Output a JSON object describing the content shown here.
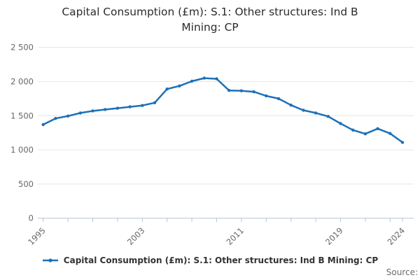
{
  "header": {
    "title": "Capital Consumption (£m): S.1: Other structures: Ind B Mining: CP"
  },
  "legend": {
    "label": "Capital Consumption (£m): S.1: Other structures: Ind B Mining: CP"
  },
  "footer": {
    "source_label": "Source:"
  },
  "colors": {
    "line": "#1d70b8",
    "marker": "#1d70b8",
    "grid": "#e6e6e6",
    "axis": "#b6c4d4",
    "tick_text": "#666666",
    "title_text": "#2b2b2b",
    "legend_text": "#333333",
    "source_text": "#6b6b6b"
  },
  "chart_data": {
    "type": "line",
    "title": "Capital Consumption (£m): S.1: Other structures: Ind B Mining: CP",
    "series_name": "Capital Consumption (£m): S.1: Other structures: Ind B Mining: CP",
    "x": [
      1995,
      1996,
      1997,
      1998,
      1999,
      2000,
      2001,
      2002,
      2003,
      2004,
      2005,
      2006,
      2007,
      2008,
      2009,
      2010,
      2011,
      2012,
      2013,
      2014,
      2015,
      2016,
      2017,
      2018,
      2019,
      2020,
      2021,
      2022,
      2023,
      2024
    ],
    "values": [
      1370,
      1460,
      1495,
      1540,
      1570,
      1590,
      1610,
      1630,
      1650,
      1690,
      1890,
      1935,
      2005,
      2050,
      2040,
      1870,
      1865,
      1850,
      1790,
      1750,
      1655,
      1580,
      1540,
      1490,
      1385,
      1290,
      1235,
      1310,
      1240,
      1110
    ],
    "xlabel": "",
    "ylabel": "",
    "xlim": [
      1995,
      2024
    ],
    "ylim": [
      0,
      2500
    ],
    "grid": "horizontal",
    "legend_position": "bottom",
    "y_ticks": [
      0,
      500,
      1000,
      1500,
      2000,
      2500
    ],
    "y_tick_labels": [
      "0",
      "500",
      "1 000",
      "1 500",
      "2 000",
      "2 500"
    ],
    "x_minor_tick_years": [
      1995,
      1997,
      1999,
      2001,
      2003,
      2005,
      2007,
      2009,
      2011,
      2013,
      2015,
      2017,
      2019,
      2021,
      2023,
      2024
    ],
    "x_label_years": [
      1995,
      2003,
      2011,
      2019,
      2024
    ],
    "x_tick_labels": [
      "1995",
      "2003",
      "2011",
      "2019",
      "2024"
    ]
  }
}
